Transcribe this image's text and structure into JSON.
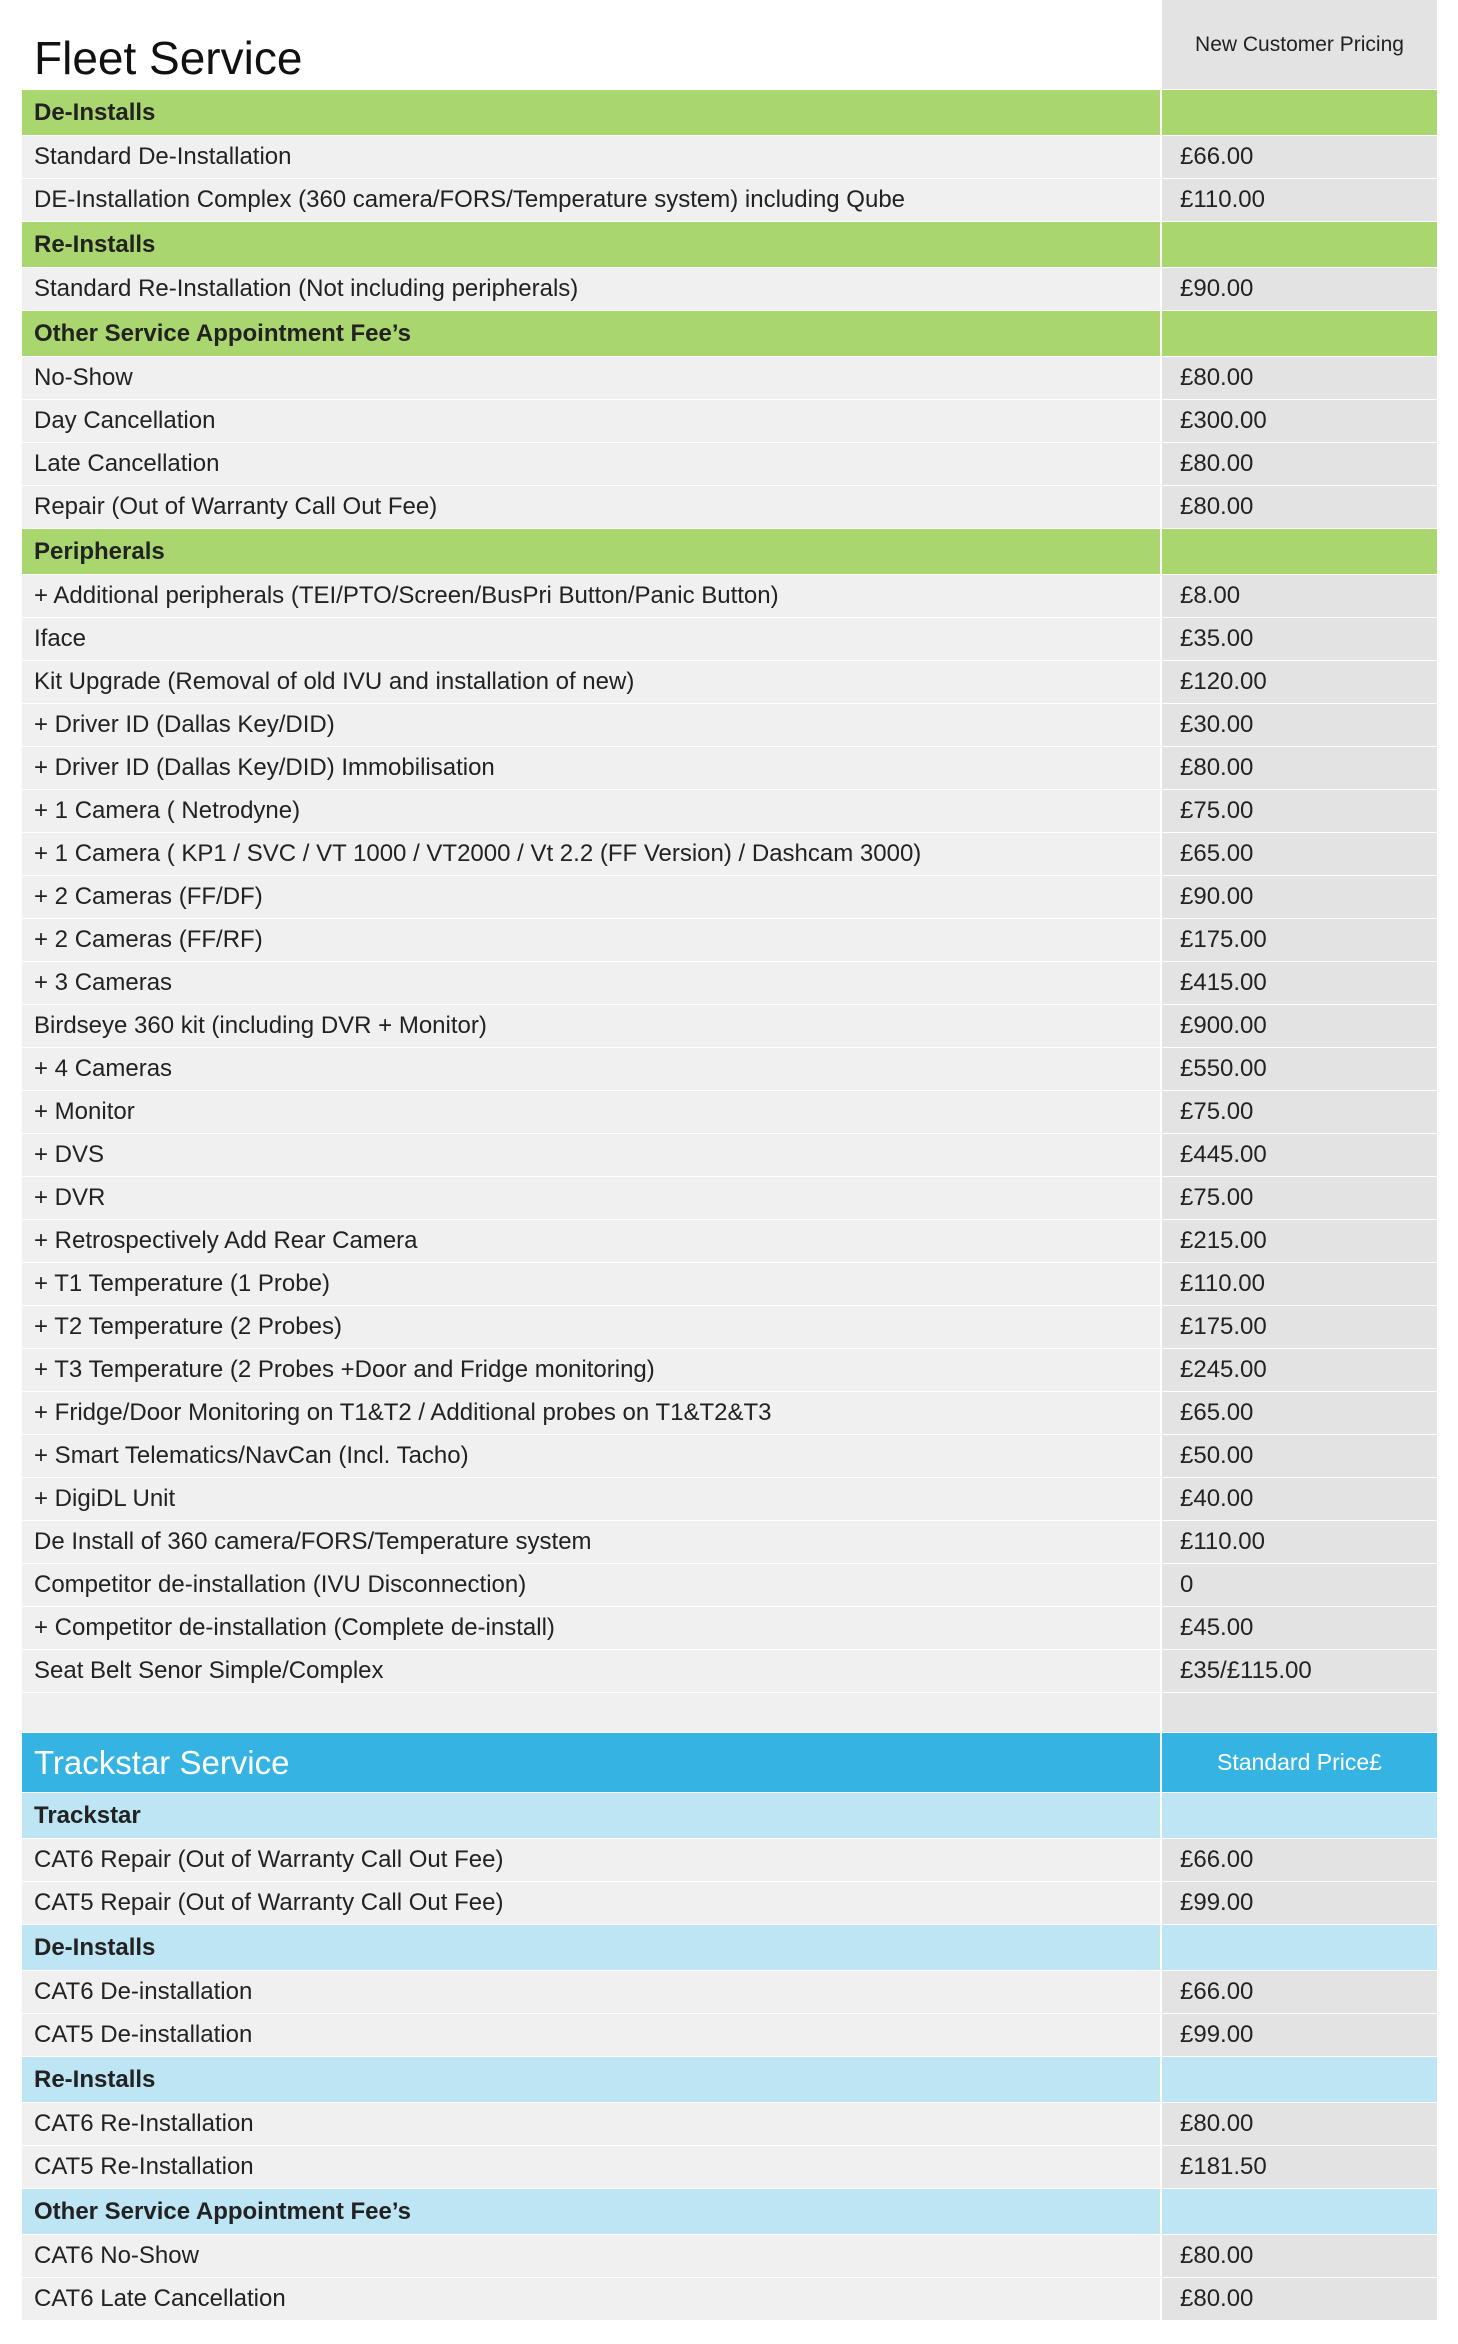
{
  "fleet": {
    "title": "Fleet Service",
    "price_header": "New Customer Pricing",
    "groups": [
      {
        "name": "De-Installs",
        "rows": [
          {
            "label": "Standard De-Installation",
            "price": "£66.00"
          },
          {
            "label": "DE-Installation Complex (360 camera/FORS/Temperature system) including Qube",
            "price": "£110.00"
          }
        ]
      },
      {
        "name": "Re-Installs",
        "rows": [
          {
            "label": "Standard Re-Installation (Not including peripherals)",
            "price": "£90.00"
          }
        ]
      },
      {
        "name": "Other Service Appointment Fee’s",
        "rows": [
          {
            "label": "No-Show",
            "price": "£80.00"
          },
          {
            "label": "Day Cancellation",
            "price": "£300.00"
          },
          {
            "label": "Late Cancellation",
            "price": "£80.00"
          },
          {
            "label": "Repair (Out of Warranty Call Out Fee)",
            "price": "£80.00"
          }
        ]
      },
      {
        "name": "Peripherals",
        "rows": [
          {
            "label": "+ Additional peripherals (TEI/PTO/Screen/BusPri Button/Panic Button)",
            "price": "£8.00"
          },
          {
            "label": "Iface",
            "price": "£35.00"
          },
          {
            "label": "Kit Upgrade (Removal of old IVU and installation of new)",
            "price": "£120.00"
          },
          {
            "label": "+ Driver ID (Dallas Key/DID)",
            "price": "£30.00"
          },
          {
            "label": "+ Driver ID (Dallas Key/DID) Immobilisation",
            "price": "£80.00"
          },
          {
            "label": "+ 1 Camera ( Netrodyne)",
            "price": "£75.00"
          },
          {
            "label": "+ 1 Camera ( KP1 / SVC / VT 1000 / VT2000 / Vt 2.2 (FF Version) / Dashcam 3000)",
            "price": "£65.00"
          },
          {
            "label": "+ 2 Cameras (FF/DF)",
            "price": "£90.00"
          },
          {
            "label": "+ 2 Cameras (FF/RF)",
            "price": "£175.00"
          },
          {
            "label": "+ 3 Cameras",
            "price": "£415.00"
          },
          {
            "label": "Birdseye 360 kit (including DVR + Monitor)",
            "price": "£900.00"
          },
          {
            "label": "+ 4 Cameras",
            "price": "£550.00"
          },
          {
            "label": "+ Monitor",
            "price": "£75.00"
          },
          {
            "label": "+ DVS",
            "price": "£445.00"
          },
          {
            "label": "+ DVR",
            "price": "£75.00"
          },
          {
            "label": "+ Retrospectively Add Rear Camera",
            "price": "£215.00"
          },
          {
            "label": "+ T1 Temperature (1 Probe)",
            "price": "£110.00"
          },
          {
            "label": "+ T2 Temperature (2 Probes)",
            "price": "£175.00"
          },
          {
            "label": "+ T3 Temperature (2 Probes +Door and Fridge monitoring)",
            "price": "£245.00"
          },
          {
            "label": "+ Fridge/Door Monitoring on T1&T2 / Additional probes on T1&T2&T3",
            "price": "£65.00"
          },
          {
            "label": "+ Smart Telematics/NavCan (Incl. Tacho)",
            "price": "£50.00"
          },
          {
            "label": "+ DigiDL Unit",
            "price": "£40.00"
          },
          {
            "label": "De Install of 360 camera/FORS/Temperature system",
            "price": "£110.00"
          },
          {
            "label": "Competitor de-installation (IVU Disconnection)",
            "price": "0"
          },
          {
            "label": "+ Competitor de-installation (Complete de-install)",
            "price": "£45.00"
          },
          {
            "label": "Seat Belt Senor Simple/Complex",
            "price": "£35/£115.00"
          }
        ]
      }
    ]
  },
  "trackstar": {
    "title": "Trackstar Service",
    "price_header": "Standard Price£",
    "groups": [
      {
        "name": "Trackstar",
        "rows": [
          {
            "label": "CAT6 Repair (Out of Warranty Call Out Fee)",
            "price": "£66.00"
          },
          {
            "label": "CAT5 Repair (Out of Warranty Call Out Fee)",
            "price": "£99.00"
          }
        ]
      },
      {
        "name": "De-Installs",
        "rows": [
          {
            "label": "CAT6 De-installation",
            "price": "£66.00"
          },
          {
            "label": "CAT5 De-installation",
            "price": "£99.00"
          }
        ]
      },
      {
        "name": "Re-Installs",
        "rows": [
          {
            "label": "CAT6 Re-Installation",
            "price": "£80.00"
          },
          {
            "label": "CAT5 Re-Installation",
            "price": "£181.50"
          }
        ]
      },
      {
        "name": "Other Service Appointment Fee’s",
        "rows": [
          {
            "label": "CAT6 No-Show",
            "price": "£80.00"
          },
          {
            "label": "CAT6 Late Cancellation",
            "price": "£80.00"
          }
        ]
      }
    ]
  }
}
